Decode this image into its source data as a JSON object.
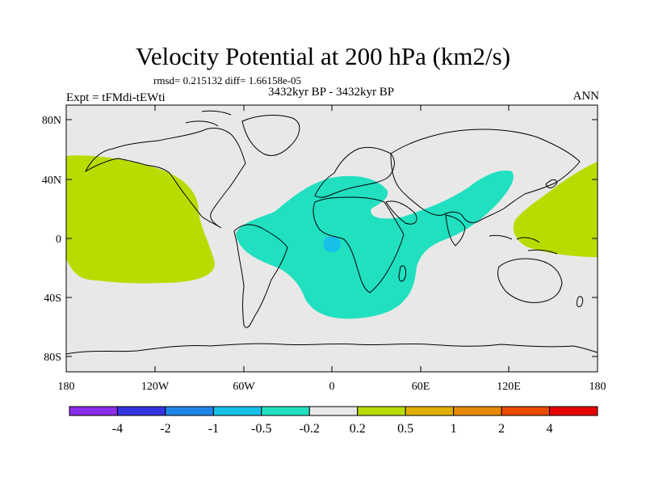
{
  "title": "Velocity Potential at 200 hPa (km2/s)",
  "stats": "rmsd= 0.215132 diff= 1.66158e-05",
  "experiment": "Expt = tFMdi-tEWti",
  "period": "3432kyr BP - 3432kyr BP",
  "season": "ANN",
  "lat_labels": [
    "80N",
    "40N",
    "0",
    "40S",
    "80S"
  ],
  "lon_labels": [
    "180",
    "120W",
    "60W",
    "0",
    "60E",
    "120E",
    "180"
  ],
  "colorbar": {
    "colors": [
      "#8b2ce8",
      "#3333e0",
      "#1f86e8",
      "#17c0e8",
      "#20e0c0",
      "#e8e8e8",
      "#b8dc00",
      "#e0b000",
      "#e88a00",
      "#e84a00",
      "#e80000"
    ],
    "labels": [
      "-4",
      "-2",
      "-1",
      "-0.5",
      "-0.2",
      "0.2",
      "0.5",
      "1",
      "2",
      "4"
    ]
  },
  "fields": {
    "background_color": "#e8e8e8",
    "negative_color": "#20e0c0",
    "negative_core_color": "#17c0e8",
    "positive_color": "#b8dc00"
  }
}
